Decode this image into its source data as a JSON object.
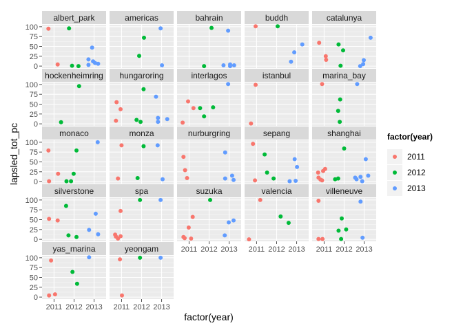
{
  "chart_data": {
    "type": "scatter",
    "facet_by": "circuit",
    "xlabel": "factor(year)",
    "ylabel": "lapsled_tot_pc",
    "x_categories": [
      "2011",
      "2012",
      "2013"
    ],
    "y_ticks": [
      0,
      25,
      50,
      75,
      100
    ],
    "ylim": [
      -5,
      105
    ],
    "grid": true,
    "legend": {
      "title": "factor(year)",
      "position": "right",
      "entries": [
        "2011",
        "2012",
        "2013"
      ],
      "colors": [
        "#F8766D",
        "#00BA38",
        "#619CFF"
      ]
    },
    "panels": [
      {
        "name": "albert_park",
        "points": [
          {
            "year": "2011",
            "x": 0.72,
            "y": 95
          },
          {
            "year": "2011",
            "x": 1.18,
            "y": 4
          },
          {
            "year": "2012",
            "x": 1.75,
            "y": 96
          },
          {
            "year": "2012",
            "x": 1.9,
            "y": 1
          },
          {
            "year": "2012",
            "x": 2.22,
            "y": 0
          },
          {
            "year": "2013",
            "x": 2.72,
            "y": 17
          },
          {
            "year": "2013",
            "x": 2.9,
            "y": 47
          },
          {
            "year": "2013",
            "x": 2.95,
            "y": 12
          },
          {
            "year": "2013",
            "x": 3.05,
            "y": 8
          },
          {
            "year": "2013",
            "x": 3.2,
            "y": 6
          },
          {
            "year": "2013",
            "x": 2.72,
            "y": 3
          }
        ]
      },
      {
        "name": "americas",
        "points": [
          {
            "year": "2012",
            "x": 1.88,
            "y": 26
          },
          {
            "year": "2012",
            "x": 2.12,
            "y": 72
          },
          {
            "year": "2013",
            "x": 2.95,
            "y": 96
          },
          {
            "year": "2013",
            "x": 3.02,
            "y": 2
          }
        ]
      },
      {
        "name": "bahrain",
        "points": [
          {
            "year": "2012",
            "x": 1.75,
            "y": 0
          },
          {
            "year": "2012",
            "x": 2.12,
            "y": 97
          },
          {
            "year": "2013",
            "x": 2.72,
            "y": 2
          },
          {
            "year": "2013",
            "x": 2.95,
            "y": 90
          },
          {
            "year": "2013",
            "x": 3.05,
            "y": 4
          },
          {
            "year": "2013",
            "x": 3.25,
            "y": 2
          },
          {
            "year": "2013",
            "x": 3.05,
            "y": 0
          }
        ]
      },
      {
        "name": "buddh",
        "points": [
          {
            "year": "2011",
            "x": 0.95,
            "y": 101
          },
          {
            "year": "2012",
            "x": 2.05,
            "y": 101
          },
          {
            "year": "2013",
            "x": 2.72,
            "y": 11
          },
          {
            "year": "2013",
            "x": 2.88,
            "y": 35
          },
          {
            "year": "2013",
            "x": 3.28,
            "y": 55
          }
        ]
      },
      {
        "name": "catalunya",
        "points": [
          {
            "year": "2011",
            "x": 0.75,
            "y": 59
          },
          {
            "year": "2011",
            "x": 1.08,
            "y": 25
          },
          {
            "year": "2011",
            "x": 1.1,
            "y": 16
          },
          {
            "year": "2012",
            "x": 1.72,
            "y": 55
          },
          {
            "year": "2012",
            "x": 1.95,
            "y": 40
          },
          {
            "year": "2012",
            "x": 1.82,
            "y": 1
          },
          {
            "year": "2013",
            "x": 2.8,
            "y": 0
          },
          {
            "year": "2013",
            "x": 2.95,
            "y": 5
          },
          {
            "year": "2013",
            "x": 2.98,
            "y": 15
          },
          {
            "year": "2013",
            "x": 3.32,
            "y": 72
          }
        ]
      },
      {
        "name": "hockenheimring",
        "points": [
          {
            "year": "2012",
            "x": 1.35,
            "y": 4
          },
          {
            "year": "2012",
            "x": 2.25,
            "y": 96
          }
        ]
      },
      {
        "name": "hungaroring",
        "points": [
          {
            "year": "2011",
            "x": 0.75,
            "y": 55
          },
          {
            "year": "2011",
            "x": 0.95,
            "y": 37
          },
          {
            "year": "2011",
            "x": 0.72,
            "y": 8
          },
          {
            "year": "2012",
            "x": 1.75,
            "y": 10
          },
          {
            "year": "2012",
            "x": 1.95,
            "y": 5
          },
          {
            "year": "2012",
            "x": 2.1,
            "y": 88
          },
          {
            "year": "2013",
            "x": 2.72,
            "y": 69
          },
          {
            "year": "2013",
            "x": 2.82,
            "y": 15
          },
          {
            "year": "2013",
            "x": 2.82,
            "y": 5
          },
          {
            "year": "2013",
            "x": 3.28,
            "y": 12
          }
        ]
      },
      {
        "name": "interlagos",
        "points": [
          {
            "year": "2011",
            "x": 0.68,
            "y": 3
          },
          {
            "year": "2011",
            "x": 0.95,
            "y": 57
          },
          {
            "year": "2011",
            "x": 1.22,
            "y": 40
          },
          {
            "year": "2012",
            "x": 1.55,
            "y": 40
          },
          {
            "year": "2012",
            "x": 1.75,
            "y": 19
          },
          {
            "year": "2012",
            "x": 2.2,
            "y": 42
          },
          {
            "year": "2013",
            "x": 2.95,
            "y": 101
          }
        ]
      },
      {
        "name": "istanbul",
        "points": [
          {
            "year": "2011",
            "x": 0.72,
            "y": 1
          },
          {
            "year": "2011",
            "x": 0.95,
            "y": 99
          }
        ]
      },
      {
        "name": "marina_bay",
        "points": [
          {
            "year": "2011",
            "x": 0.9,
            "y": 101
          },
          {
            "year": "2012",
            "x": 1.7,
            "y": 33
          },
          {
            "year": "2012",
            "x": 1.8,
            "y": 62
          },
          {
            "year": "2012",
            "x": 1.78,
            "y": 5
          },
          {
            "year": "2013",
            "x": 2.65,
            "y": 101
          }
        ]
      },
      {
        "name": "monaco",
        "points": [
          {
            "year": "2011",
            "x": 0.72,
            "y": 79
          },
          {
            "year": "2011",
            "x": 0.75,
            "y": 1
          },
          {
            "year": "2011",
            "x": 1.2,
            "y": 20
          },
          {
            "year": "2012",
            "x": 1.62,
            "y": 1
          },
          {
            "year": "2012",
            "x": 1.85,
            "y": 1
          },
          {
            "year": "2012",
            "x": 1.98,
            "y": 20
          },
          {
            "year": "2012",
            "x": 2.12,
            "y": 79
          },
          {
            "year": "2013",
            "x": 3.18,
            "y": 100
          }
        ]
      },
      {
        "name": "monza",
        "points": [
          {
            "year": "2011",
            "x": 0.82,
            "y": 8
          },
          {
            "year": "2011",
            "x": 1.0,
            "y": 92
          },
          {
            "year": "2012",
            "x": 1.8,
            "y": 9
          },
          {
            "year": "2012",
            "x": 2.1,
            "y": 90
          },
          {
            "year": "2013",
            "x": 2.8,
            "y": 92
          },
          {
            "year": "2013",
            "x": 3.05,
            "y": 6
          }
        ]
      },
      {
        "name": "nurburgring",
        "points": [
          {
            "year": "2011",
            "x": 0.72,
            "y": 63
          },
          {
            "year": "2011",
            "x": 0.8,
            "y": 29
          },
          {
            "year": "2011",
            "x": 0.9,
            "y": 9
          },
          {
            "year": "2013",
            "x": 2.8,
            "y": 74
          },
          {
            "year": "2013",
            "x": 2.8,
            "y": 8
          },
          {
            "year": "2013",
            "x": 3.15,
            "y": 15
          },
          {
            "year": "2013",
            "x": 3.22,
            "y": 4
          }
        ]
      },
      {
        "name": "sepang",
        "points": [
          {
            "year": "2011",
            "x": 0.82,
            "y": 96
          },
          {
            "year": "2011",
            "x": 0.92,
            "y": 3
          },
          {
            "year": "2012",
            "x": 1.4,
            "y": 69
          },
          {
            "year": "2012",
            "x": 1.52,
            "y": 23
          },
          {
            "year": "2012",
            "x": 1.85,
            "y": 8
          },
          {
            "year": "2013",
            "x": 2.65,
            "y": 1
          },
          {
            "year": "2013",
            "x": 2.9,
            "y": 57
          },
          {
            "year": "2013",
            "x": 3.02,
            "y": 37
          },
          {
            "year": "2013",
            "x": 2.95,
            "y": 2
          }
        ]
      },
      {
        "name": "shanghai",
        "points": [
          {
            "year": "2011",
            "x": 0.7,
            "y": 23
          },
          {
            "year": "2011",
            "x": 0.72,
            "y": 10
          },
          {
            "year": "2011",
            "x": 0.82,
            "y": 5
          },
          {
            "year": "2011",
            "x": 0.9,
            "y": 3
          },
          {
            "year": "2011",
            "x": 0.95,
            "y": 27
          },
          {
            "year": "2011",
            "x": 1.05,
            "y": 32
          },
          {
            "year": "2012",
            "x": 1.55,
            "y": 6
          },
          {
            "year": "2012",
            "x": 1.7,
            "y": 8
          },
          {
            "year": "2012",
            "x": 2.0,
            "y": 84
          },
          {
            "year": "2013",
            "x": 2.55,
            "y": 10
          },
          {
            "year": "2013",
            "x": 2.62,
            "y": 6
          },
          {
            "year": "2013",
            "x": 2.82,
            "y": 12
          },
          {
            "year": "2013",
            "x": 2.9,
            "y": 1
          },
          {
            "year": "2013",
            "x": 3.08,
            "y": 57
          },
          {
            "year": "2013",
            "x": 3.2,
            "y": 15
          }
        ]
      },
      {
        "name": "silverstone",
        "points": [
          {
            "year": "2011",
            "x": 0.75,
            "y": 52
          },
          {
            "year": "2011",
            "x": 1.18,
            "y": 48
          },
          {
            "year": "2012",
            "x": 1.6,
            "y": 85
          },
          {
            "year": "2012",
            "x": 1.72,
            "y": 10
          },
          {
            "year": "2012",
            "x": 2.12,
            "y": 6
          },
          {
            "year": "2013",
            "x": 2.75,
            "y": 24
          },
          {
            "year": "2013",
            "x": 3.08,
            "y": 65
          },
          {
            "year": "2013",
            "x": 3.2,
            "y": 13
          }
        ]
      },
      {
        "name": "spa",
        "points": [
          {
            "year": "2011",
            "x": 0.68,
            "y": 12
          },
          {
            "year": "2011",
            "x": 0.72,
            "y": 7
          },
          {
            "year": "2011",
            "x": 0.82,
            "y": 2
          },
          {
            "year": "2011",
            "x": 0.95,
            "y": 72
          },
          {
            "year": "2011",
            "x": 0.95,
            "y": 8
          },
          {
            "year": "2012",
            "x": 1.92,
            "y": 100
          },
          {
            "year": "2013",
            "x": 2.95,
            "y": 100
          }
        ]
      },
      {
        "name": "suzuka",
        "points": [
          {
            "year": "2011",
            "x": 0.72,
            "y": 6
          },
          {
            "year": "2011",
            "x": 0.78,
            "y": 3
          },
          {
            "year": "2011",
            "x": 0.98,
            "y": 30
          },
          {
            "year": "2011",
            "x": 1.18,
            "y": 57
          },
          {
            "year": "2011",
            "x": 1.1,
            "y": 2
          },
          {
            "year": "2012",
            "x": 2.05,
            "y": 100
          },
          {
            "year": "2013",
            "x": 2.78,
            "y": 10
          },
          {
            "year": "2013",
            "x": 2.98,
            "y": 43
          },
          {
            "year": "2013",
            "x": 3.22,
            "y": 48
          }
        ]
      },
      {
        "name": "valencia",
        "points": [
          {
            "year": "2011",
            "x": 0.62,
            "y": 0
          },
          {
            "year": "2011",
            "x": 1.18,
            "y": 100
          },
          {
            "year": "2012",
            "x": 2.2,
            "y": 58
          },
          {
            "year": "2012",
            "x": 2.6,
            "y": 42
          }
        ]
      },
      {
        "name": "villeneuve",
        "points": [
          {
            "year": "2011",
            "x": 0.72,
            "y": 1
          },
          {
            "year": "2011",
            "x": 0.92,
            "y": 1
          },
          {
            "year": "2011",
            "x": 0.72,
            "y": 98
          },
          {
            "year": "2012",
            "x": 1.72,
            "y": 22
          },
          {
            "year": "2012",
            "x": 1.88,
            "y": 53
          },
          {
            "year": "2012",
            "x": 1.85,
            "y": 1
          },
          {
            "year": "2012",
            "x": 2.1,
            "y": 25
          },
          {
            "year": "2013",
            "x": 2.82,
            "y": 96
          },
          {
            "year": "2013",
            "x": 2.92,
            "y": 4
          }
        ]
      },
      {
        "name": "yas_marina",
        "points": [
          {
            "year": "2011",
            "x": 0.75,
            "y": 4
          },
          {
            "year": "2011",
            "x": 0.85,
            "y": 93
          },
          {
            "year": "2011",
            "x": 1.05,
            "y": 7
          },
          {
            "year": "2012",
            "x": 1.92,
            "y": 64
          },
          {
            "year": "2012",
            "x": 2.15,
            "y": 34
          },
          {
            "year": "2013",
            "x": 2.75,
            "y": 101
          }
        ]
      },
      {
        "name": "yeongam",
        "points": [
          {
            "year": "2011",
            "x": 0.92,
            "y": 96
          },
          {
            "year": "2011",
            "x": 1.02,
            "y": 4
          },
          {
            "year": "2012",
            "x": 1.92,
            "y": 100
          },
          {
            "year": "2013",
            "x": 2.95,
            "y": 100
          }
        ]
      }
    ]
  }
}
